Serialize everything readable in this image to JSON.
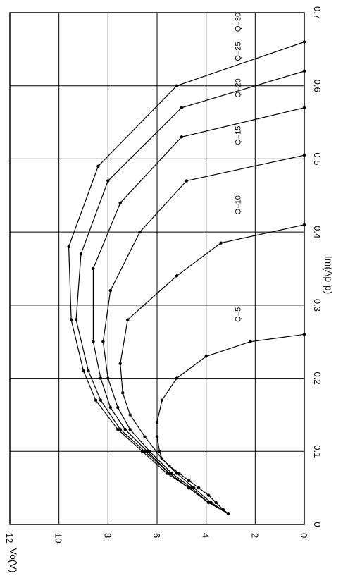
{
  "chart_data": {
    "type": "line",
    "orientation": "rotated-90-ccw",
    "xlabel": "Im(Ap-p)",
    "ylabel": "Vo(V)",
    "xlim": [
      0,
      0.7
    ],
    "ylim": [
      0,
      12
    ],
    "x_ticks": [
      "0",
      "0.1",
      "0.2",
      "0.3",
      "0.4",
      "0.5",
      "0.6",
      "0.7"
    ],
    "y_ticks": [
      "0",
      "2",
      "4",
      "6",
      "8",
      "10",
      "12"
    ],
    "grid": true,
    "series": [
      {
        "name": "Q=5",
        "points": [
          [
            0.015,
            3.1
          ],
          [
            0.02,
            3.3
          ],
          [
            0.03,
            3.6
          ],
          [
            0.04,
            3.9
          ],
          [
            0.05,
            4.3
          ],
          [
            0.06,
            4.7
          ],
          [
            0.07,
            5.1
          ],
          [
            0.08,
            5.5
          ],
          [
            0.09,
            5.8
          ],
          [
            0.1,
            5.9
          ],
          [
            0.12,
            6.0
          ],
          [
            0.14,
            6.0
          ],
          [
            0.17,
            5.8
          ],
          [
            0.2,
            5.2
          ],
          [
            0.23,
            4.0
          ],
          [
            0.25,
            2.2
          ],
          [
            0.26,
            0.0
          ]
        ]
      },
      {
        "name": "Q=10",
        "points": [
          [
            0.015,
            3.1
          ],
          [
            0.03,
            3.8
          ],
          [
            0.05,
            4.5
          ],
          [
            0.07,
            5.2
          ],
          [
            0.09,
            5.8
          ],
          [
            0.12,
            6.5
          ],
          [
            0.15,
            7.1
          ],
          [
            0.18,
            7.4
          ],
          [
            0.22,
            7.5
          ],
          [
            0.28,
            7.2
          ],
          [
            0.34,
            5.2
          ],
          [
            0.385,
            3.4
          ],
          [
            0.41,
            0.0
          ]
        ]
      },
      {
        "name": "Q=15",
        "points": [
          [
            0.015,
            3.1
          ],
          [
            0.03,
            3.9
          ],
          [
            0.05,
            4.6
          ],
          [
            0.07,
            5.4
          ],
          [
            0.1,
            6.3
          ],
          [
            0.13,
            7.1
          ],
          [
            0.16,
            7.6
          ],
          [
            0.2,
            8.0
          ],
          [
            0.25,
            8.2
          ],
          [
            0.32,
            7.9
          ],
          [
            0.4,
            6.7
          ],
          [
            0.47,
            4.8
          ],
          [
            0.505,
            0.0
          ]
        ]
      },
      {
        "name": "Q=20",
        "points": [
          [
            0.015,
            3.1
          ],
          [
            0.03,
            3.9
          ],
          [
            0.05,
            4.7
          ],
          [
            0.07,
            5.5
          ],
          [
            0.1,
            6.4
          ],
          [
            0.13,
            7.3
          ],
          [
            0.16,
            7.9
          ],
          [
            0.2,
            8.3
          ],
          [
            0.25,
            8.6
          ],
          [
            0.35,
            8.6
          ],
          [
            0.44,
            7.5
          ],
          [
            0.53,
            5.0
          ],
          [
            0.57,
            0.0
          ]
        ]
      },
      {
        "name": "Q=25",
        "points": [
          [
            0.015,
            3.1
          ],
          [
            0.03,
            3.9
          ],
          [
            0.05,
            4.7
          ],
          [
            0.07,
            5.5
          ],
          [
            0.1,
            6.5
          ],
          [
            0.13,
            7.5
          ],
          [
            0.17,
            8.3
          ],
          [
            0.21,
            8.8
          ],
          [
            0.28,
            9.3
          ],
          [
            0.37,
            9.1
          ],
          [
            0.47,
            8.0
          ],
          [
            0.57,
            5.0
          ],
          [
            0.62,
            0.0
          ]
        ]
      },
      {
        "name": "Q=30",
        "points": [
          [
            0.015,
            3.1
          ],
          [
            0.03,
            3.9
          ],
          [
            0.05,
            4.7
          ],
          [
            0.07,
            5.6
          ],
          [
            0.1,
            6.6
          ],
          [
            0.13,
            7.6
          ],
          [
            0.17,
            8.5
          ],
          [
            0.21,
            9.0
          ],
          [
            0.28,
            9.5
          ],
          [
            0.38,
            9.6
          ],
          [
            0.49,
            8.4
          ],
          [
            0.6,
            5.2
          ],
          [
            0.66,
            0.0
          ]
        ]
      }
    ]
  }
}
